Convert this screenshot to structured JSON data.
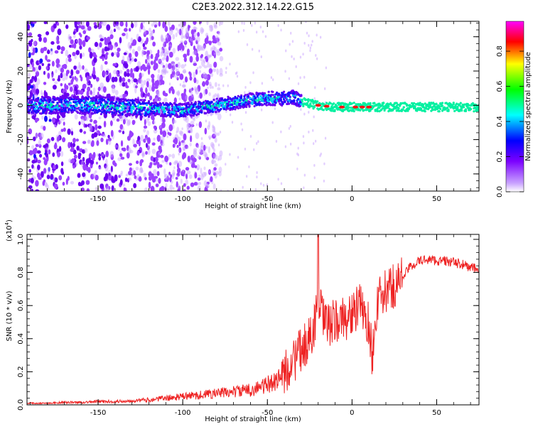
{
  "title": "C2E3.2022.312.14.22.G15",
  "colorbar": {
    "label": "Normalized spectral amplitude",
    "ticks": [
      "0.0",
      "0.2",
      "0.4",
      "0.6",
      "0.8"
    ],
    "tick_values": [
      0.0,
      0.2,
      0.4,
      0.6,
      0.8
    ],
    "range": [
      0.0,
      0.97
    ],
    "colors": [
      "#ffffff",
      "#7b00ff",
      "#0000ff",
      "#00ffff",
      "#00ff00",
      "#ffff00",
      "#ff0000",
      "#ff00ff"
    ]
  },
  "chart_data": [
    {
      "type": "heatmap",
      "title": "C2E3.2022.312.14.22.G15",
      "xlabel": "Height of straight line (km)",
      "ylabel": "Frequency (Hz)",
      "xlim": [
        -192,
        75
      ],
      "ylim": [
        -50,
        49
      ],
      "xticks": [
        -150,
        -100,
        -50,
        0,
        50
      ],
      "xtick_labels": [
        "-150",
        "-100",
        "-50",
        "0",
        "50"
      ],
      "yticks": [
        -40,
        -20,
        0,
        20,
        40
      ],
      "ytick_labels": [
        "-40",
        "-20",
        "0",
        "20",
        "40"
      ],
      "colorbar_label": "Normalized spectral amplitude",
      "ridge": {
        "x": [
          -192,
          -150,
          -120,
          -100,
          -80,
          -60,
          -50,
          -40,
          -35,
          -30,
          -20,
          -10,
          0,
          10,
          20,
          40,
          60,
          75
        ],
        "y": [
          0,
          0,
          -2,
          -3,
          0,
          3,
          4,
          4,
          5,
          2,
          0,
          -1,
          -1,
          -1,
          -1,
          -1,
          -1,
          -1
        ]
      },
      "band_width_hz": [
        {
          "x": [
            -192,
            -120
          ],
          "halfwidth": 5
        },
        {
          "x": [
            -120,
            -30
          ],
          "halfwidth": 4
        },
        {
          "x": [
            -30,
            75
          ],
          "halfwidth": 2.5
        }
      ],
      "peak_regions": [
        -20,
        -15,
        -6,
        2,
        6,
        10
      ],
      "grid": false
    },
    {
      "type": "line",
      "xlabel": "Height of straight line (km)",
      "ylabel": "SNR (10 * v/v)",
      "y_exponent_label": "(x10",
      "y_exponent": "4",
      "y_exponent_close": ")",
      "xlim": [
        -192,
        75
      ],
      "ylim": [
        0.0,
        1.03
      ],
      "xticks": [
        -150,
        -100,
        -50,
        0,
        50
      ],
      "xtick_labels": [
        "-150",
        "-100",
        "-50",
        "0",
        "50"
      ],
      "yticks": [
        0.0,
        0.2,
        0.4,
        0.6,
        0.8,
        1.0
      ],
      "ytick_labels": [
        "0.0",
        "0.2",
        "0.4",
        "0.6",
        "0.8",
        "1.0"
      ],
      "series": [
        {
          "color": "#ee2222",
          "x": [
            -192,
            -180,
            -170,
            -160,
            -150,
            -140,
            -130,
            -120,
            -110,
            -100,
            -90,
            -80,
            -70,
            -60,
            -50,
            -45,
            -40,
            -35,
            -30,
            -25,
            -22,
            -20,
            -18,
            -15,
            -10,
            -5,
            0,
            5,
            10,
            12,
            15,
            20,
            25,
            30,
            35,
            40,
            45,
            50,
            55,
            60,
            65,
            70,
            75
          ],
          "y": [
            0.01,
            0.01,
            0.015,
            0.015,
            0.02,
            0.02,
            0.025,
            0.03,
            0.04,
            0.05,
            0.06,
            0.07,
            0.08,
            0.09,
            0.12,
            0.15,
            0.2,
            0.26,
            0.33,
            0.4,
            0.5,
            0.6,
            0.55,
            0.48,
            0.5,
            0.52,
            0.55,
            0.6,
            0.48,
            0.3,
            0.62,
            0.68,
            0.72,
            0.78,
            0.84,
            0.87,
            0.88,
            0.87,
            0.87,
            0.86,
            0.85,
            0.83,
            0.82
          ]
        }
      ],
      "grid": false
    }
  ]
}
